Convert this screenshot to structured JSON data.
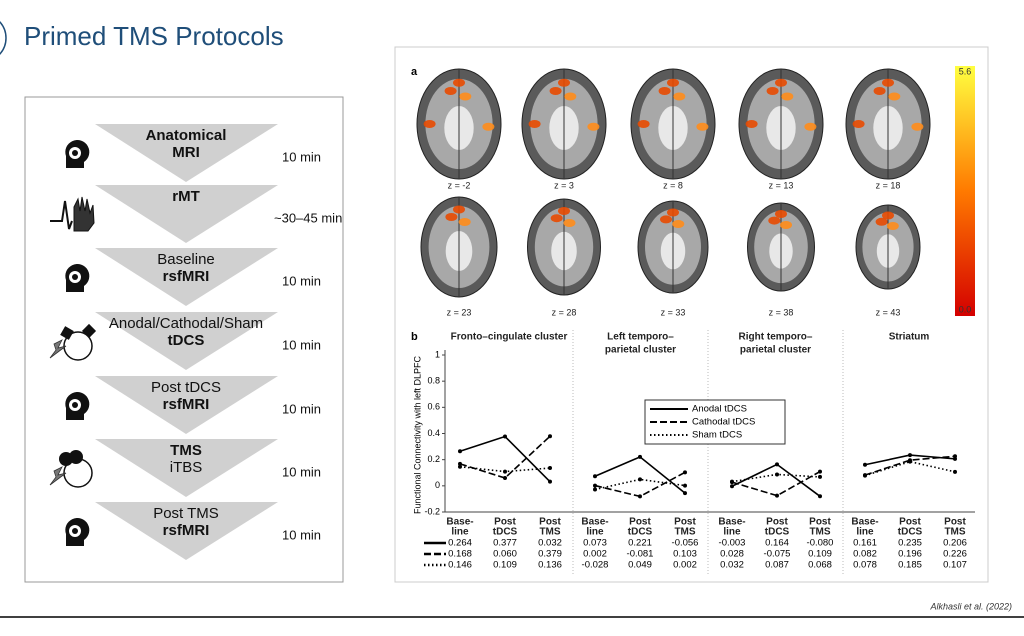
{
  "header": {
    "title": "Primed TMS Protocols"
  },
  "protocol": {
    "steps": [
      {
        "lines": [
          "Anatomical",
          "MRI"
        ],
        "duration": "10 min"
      },
      {
        "lines": [
          "rMT"
        ],
        "duration": "~30–45 min"
      },
      {
        "lines": [
          "Baseline",
          "rsfMRI"
        ],
        "duration": "10 min"
      },
      {
        "lines": [
          "Anodal/Cathodal/Sham",
          "tDCS"
        ],
        "duration": "10 min"
      },
      {
        "lines": [
          "Post tDCS",
          "rsfMRI"
        ],
        "duration": "10 min"
      },
      {
        "lines": [
          "TMS",
          "iTBS"
        ],
        "duration": "10 min"
      },
      {
        "lines": [
          "Post TMS",
          "rsfMRI"
        ],
        "duration": "10 min"
      }
    ]
  },
  "figure_a": {
    "label": "a",
    "slices": [
      "z = -2",
      "z = 3",
      "z = 8",
      "z = 13",
      "z = 18",
      "z = 23",
      "z = 28",
      "z = 33",
      "z = 38",
      "z = 43"
    ],
    "colorbar": {
      "max": "5.6",
      "min": "0.0"
    }
  },
  "chart_data": {
    "type": "line",
    "label": "b",
    "y_label": "Functional Connectivity with left DLPFC",
    "ylim": [
      -0.2,
      1
    ],
    "yticks": [
      1,
      0.8,
      0.6,
      0.4,
      0.2,
      0,
      -0.2
    ],
    "categories": [
      [
        "Base-",
        "line"
      ],
      [
        "Post",
        "tDCS"
      ],
      [
        "Post",
        "TMS"
      ]
    ],
    "series": [
      {
        "name": "Anodal tDCS",
        "dash": "solid",
        "color": "#000000"
      },
      {
        "name": "Cathodal tDCS",
        "dash": "dashed",
        "color": "#000000"
      },
      {
        "name": "Sham tDCS",
        "dash": "dotted",
        "color": "#000000"
      }
    ],
    "panels": [
      {
        "title": [
          "Fronto–cingulate cluster"
        ],
        "series": [
          {
            "values": [
              0.264,
              0.377,
              0.032
            ]
          },
          {
            "values": [
              0.168,
              0.06,
              0.379
            ],
            "value_labels": [
              "0.168",
              "0.060",
              "0.379"
            ]
          },
          {
            "values": [
              0.146,
              0.109,
              0.136
            ]
          }
        ]
      },
      {
        "title": [
          "Left temporo–",
          "parietal cluster"
        ],
        "series": [
          {
            "values": [
              0.073,
              0.221,
              -0.056
            ]
          },
          {
            "values": [
              0.002,
              -0.081,
              0.103
            ]
          },
          {
            "values": [
              -0.028,
              0.049,
              0.002
            ]
          }
        ]
      },
      {
        "title": [
          "Right temporo–",
          "parietal cluster"
        ],
        "series": [
          {
            "values": [
              -0.003,
              0.164,
              -0.08
            ],
            "value_labels": [
              "-0.003",
              "0.164",
              "-0.080"
            ]
          },
          {
            "values": [
              0.028,
              -0.075,
              0.109
            ]
          },
          {
            "values": [
              0.032,
              0.087,
              0.068
            ]
          }
        ]
      },
      {
        "title": [
          "Striatum"
        ],
        "series": [
          {
            "values": [
              0.161,
              0.235,
              0.206
            ]
          },
          {
            "values": [
              0.082,
              0.196,
              0.226
            ]
          },
          {
            "values": [
              0.078,
              0.185,
              0.107
            ]
          }
        ]
      }
    ]
  },
  "citation": "Alkhasli et al. (2022)"
}
